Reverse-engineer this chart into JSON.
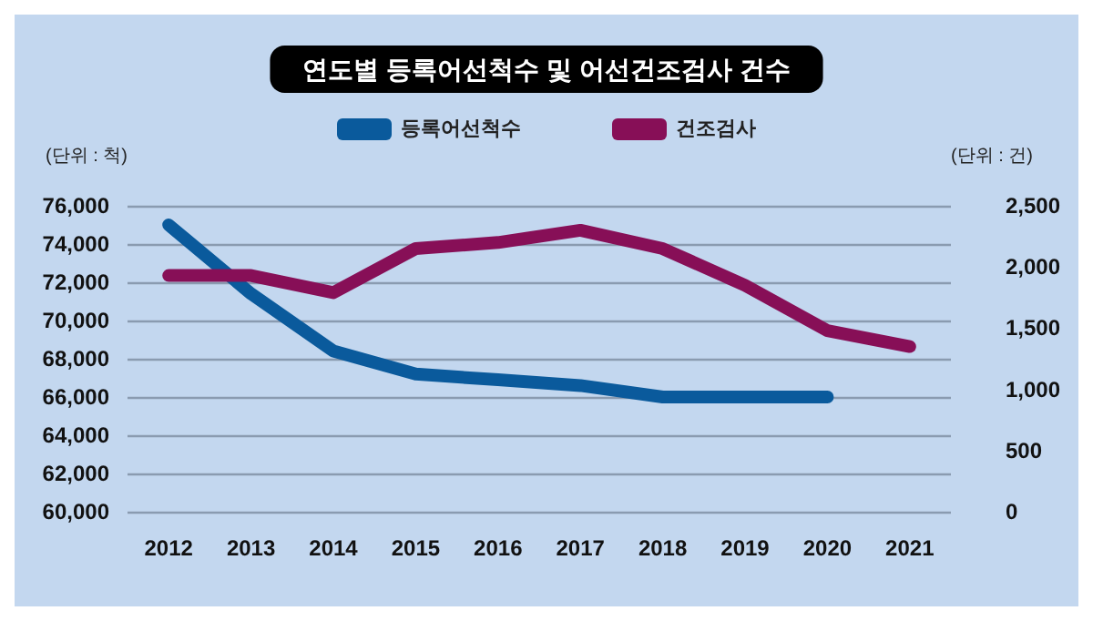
{
  "chart_data": {
    "type": "line",
    "title": "연도별 등록어선척수 및 어선건조검사 건수",
    "ylabel": "(단위 : 척)",
    "y2label": "(단위 : 건)",
    "categories": [
      "2012",
      "2013",
      "2014",
      "2015",
      "2016",
      "2017",
      "2018",
      "2019",
      "2020",
      "2021"
    ],
    "series": [
      {
        "name": "등록어선척수",
        "color": "#0a5a9c",
        "values": [
          75000,
          71400,
          68400,
          67200,
          66900,
          66600,
          66000,
          66000,
          66000,
          null
        ]
      },
      {
        "name": "건조검사",
        "color": "#870f57",
        "axis": "y2",
        "values": [
          1930,
          1930,
          1790,
          2150,
          2200,
          2300,
          2150,
          1850,
          1480,
          1350
        ]
      }
    ],
    "ylim": [
      60000,
      76000
    ],
    "yticks": [
      {
        "value": 60000,
        "label": "60,000"
      },
      {
        "value": 62000,
        "label": "62,000"
      },
      {
        "value": 64000,
        "label": "64,000"
      },
      {
        "value": 66000,
        "label": "66,000"
      },
      {
        "value": 68000,
        "label": "68,000"
      },
      {
        "value": 70000,
        "label": "70,000"
      },
      {
        "value": 72000,
        "label": "72,000"
      },
      {
        "value": 74000,
        "label": "74,000"
      },
      {
        "value": 76000,
        "label": "76,000"
      }
    ],
    "y2lim": [
      0,
      2500
    ],
    "y2ticks": [
      0,
      500,
      {
        "value": 1000,
        "label": "1,000"
      },
      {
        "value": 1500,
        "label": "1,500"
      },
      {
        "value": 2000,
        "label": "2,000"
      },
      {
        "value": 2500,
        "label": "2,500"
      }
    ],
    "grid": "y",
    "legend": "top",
    "line_style": "solid"
  }
}
